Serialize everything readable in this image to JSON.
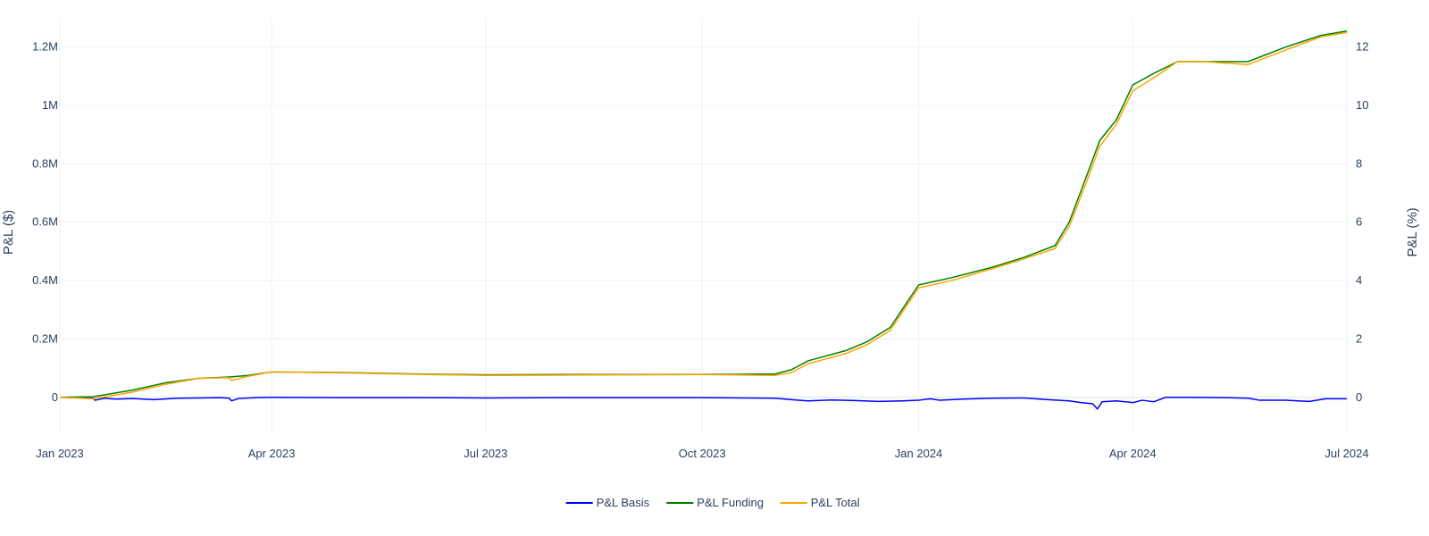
{
  "chart_data": {
    "type": "line",
    "title": "",
    "xlabel": "",
    "ylabel": "P&L ($)",
    "ylabel_right": "P&L (%)",
    "xlim": [
      "2023-01-01",
      "2024-07-01"
    ],
    "ylim": [
      -120000,
      1300000
    ],
    "ylim_right": [
      -1.2,
      13.0
    ],
    "grid": true,
    "legend_position": "bottom-center",
    "x_ticks": [
      {
        "date": "2023-01-01",
        "label": "Jan 2023"
      },
      {
        "date": "2023-04-01",
        "label": "Apr 2023"
      },
      {
        "date": "2023-07-01",
        "label": "Jul 2023"
      },
      {
        "date": "2023-10-01",
        "label": "Oct 2023"
      },
      {
        "date": "2024-01-01",
        "label": "Jan 2024"
      },
      {
        "date": "2024-04-01",
        "label": "Apr 2024"
      },
      {
        "date": "2024-07-01",
        "label": "Jul 2024"
      }
    ],
    "y_ticks": [
      {
        "value": 0,
        "label": "0"
      },
      {
        "value": 200000,
        "label": "0.2M"
      },
      {
        "value": 400000,
        "label": "0.4M"
      },
      {
        "value": 600000,
        "label": "0.6M"
      },
      {
        "value": 800000,
        "label": "0.8M"
      },
      {
        "value": 1000000,
        "label": "1M"
      },
      {
        "value": 1200000,
        "label": "1.2M"
      }
    ],
    "y_ticks_right": [
      {
        "value": 0,
        "label": "0"
      },
      {
        "value": 2,
        "label": "2"
      },
      {
        "value": 4,
        "label": "4"
      },
      {
        "value": 6,
        "label": "6"
      },
      {
        "value": 8,
        "label": "8"
      },
      {
        "value": 10,
        "label": "10"
      },
      {
        "value": 12,
        "label": "12"
      }
    ],
    "series": [
      {
        "name": "P&L Basis",
        "color": "#0000ff",
        "points": [
          [
            "2023-01-01",
            0
          ],
          [
            "2023-01-10",
            -2000
          ],
          [
            "2023-01-15",
            -3000
          ],
          [
            "2023-01-16",
            -10000
          ],
          [
            "2023-01-20",
            -3000
          ],
          [
            "2023-01-25",
            -6000
          ],
          [
            "2023-02-01",
            -4000
          ],
          [
            "2023-02-10",
            -8000
          ],
          [
            "2023-02-20",
            -3000
          ],
          [
            "2023-03-01",
            -2000
          ],
          [
            "2023-03-10",
            -1000
          ],
          [
            "2023-03-14",
            -3000
          ],
          [
            "2023-03-15",
            -12000
          ],
          [
            "2023-03-18",
            -4000
          ],
          [
            "2023-03-25",
            -1000
          ],
          [
            "2023-04-01",
            0
          ],
          [
            "2023-05-01",
            -1000
          ],
          [
            "2023-06-01",
            -1000
          ],
          [
            "2023-07-01",
            -2000
          ],
          [
            "2023-08-01",
            -1000
          ],
          [
            "2023-09-01",
            -1000
          ],
          [
            "2023-10-01",
            -1000
          ],
          [
            "2023-11-01",
            -3000
          ],
          [
            "2023-11-08",
            -8000
          ],
          [
            "2023-11-15",
            -12000
          ],
          [
            "2023-11-25",
            -9000
          ],
          [
            "2023-12-05",
            -11000
          ],
          [
            "2023-12-15",
            -14000
          ],
          [
            "2023-12-25",
            -12000
          ],
          [
            "2024-01-01",
            -10000
          ],
          [
            "2024-01-06",
            -5000
          ],
          [
            "2024-01-10",
            -10000
          ],
          [
            "2024-01-20",
            -6000
          ],
          [
            "2024-02-01",
            -3000
          ],
          [
            "2024-02-15",
            -2000
          ],
          [
            "2024-02-25",
            -8000
          ],
          [
            "2024-03-05",
            -12000
          ],
          [
            "2024-03-10",
            -18000
          ],
          [
            "2024-03-15",
            -22000
          ],
          [
            "2024-03-17",
            -40000
          ],
          [
            "2024-03-19",
            -15000
          ],
          [
            "2024-03-25",
            -12000
          ],
          [
            "2024-04-01",
            -18000
          ],
          [
            "2024-04-05",
            -10000
          ],
          [
            "2024-04-10",
            -15000
          ],
          [
            "2024-04-15",
            0
          ],
          [
            "2024-04-25",
            0
          ],
          [
            "2024-05-10",
            -1000
          ],
          [
            "2024-05-20",
            -3000
          ],
          [
            "2024-05-25",
            -10000
          ],
          [
            "2024-06-05",
            -10000
          ],
          [
            "2024-06-15",
            -14000
          ],
          [
            "2024-06-22",
            -5000
          ],
          [
            "2024-07-01",
            -5000
          ]
        ]
      },
      {
        "name": "P&L Funding",
        "color": "#008000",
        "points": [
          [
            "2023-01-01",
            0
          ],
          [
            "2023-01-15",
            2000
          ],
          [
            "2023-02-01",
            25000
          ],
          [
            "2023-02-15",
            50000
          ],
          [
            "2023-03-01",
            65000
          ],
          [
            "2023-03-15",
            70000
          ],
          [
            "2023-03-22",
            75000
          ],
          [
            "2023-04-01",
            87000
          ],
          [
            "2023-05-01",
            85000
          ],
          [
            "2023-06-01",
            80000
          ],
          [
            "2023-07-01",
            77000
          ],
          [
            "2023-08-01",
            78000
          ],
          [
            "2023-09-01",
            78000
          ],
          [
            "2023-10-01",
            79000
          ],
          [
            "2023-10-15",
            79000
          ],
          [
            "2023-11-01",
            80000
          ],
          [
            "2023-11-08",
            95000
          ],
          [
            "2023-11-15",
            125000
          ],
          [
            "2023-12-01",
            160000
          ],
          [
            "2023-12-10",
            190000
          ],
          [
            "2023-12-20",
            240000
          ],
          [
            "2024-01-01",
            385000
          ],
          [
            "2024-01-15",
            410000
          ],
          [
            "2024-02-01",
            445000
          ],
          [
            "2024-02-15",
            480000
          ],
          [
            "2024-02-28",
            520000
          ],
          [
            "2024-03-05",
            600000
          ],
          [
            "2024-03-12",
            750000
          ],
          [
            "2024-03-18",
            880000
          ],
          [
            "2024-03-25",
            950000
          ],
          [
            "2024-04-01",
            1070000
          ],
          [
            "2024-04-10",
            1110000
          ],
          [
            "2024-04-20",
            1150000
          ],
          [
            "2024-05-01",
            1150000
          ],
          [
            "2024-05-20",
            1150000
          ],
          [
            "2024-06-05",
            1200000
          ],
          [
            "2024-06-20",
            1240000
          ],
          [
            "2024-07-01",
            1255000
          ]
        ]
      },
      {
        "name": "P&L Total",
        "color": "#ffa500",
        "points": [
          [
            "2023-01-01",
            0
          ],
          [
            "2023-01-15",
            -5000
          ],
          [
            "2023-02-01",
            18000
          ],
          [
            "2023-02-15",
            45000
          ],
          [
            "2023-03-01",
            65000
          ],
          [
            "2023-03-14",
            67000
          ],
          [
            "2023-03-15",
            58000
          ],
          [
            "2023-03-22",
            72000
          ],
          [
            "2023-04-01",
            87000
          ],
          [
            "2023-05-01",
            84000
          ],
          [
            "2023-06-01",
            79000
          ],
          [
            "2023-07-01",
            75000
          ],
          [
            "2023-08-01",
            76000
          ],
          [
            "2023-09-01",
            77000
          ],
          [
            "2023-10-01",
            78000
          ],
          [
            "2023-11-01",
            75000
          ],
          [
            "2023-11-08",
            85000
          ],
          [
            "2023-11-15",
            115000
          ],
          [
            "2023-12-01",
            150000
          ],
          [
            "2023-12-10",
            180000
          ],
          [
            "2023-12-20",
            230000
          ],
          [
            "2024-01-01",
            375000
          ],
          [
            "2024-01-15",
            400000
          ],
          [
            "2024-02-01",
            440000
          ],
          [
            "2024-02-15",
            475000
          ],
          [
            "2024-02-28",
            510000
          ],
          [
            "2024-03-05",
            585000
          ],
          [
            "2024-03-12",
            730000
          ],
          [
            "2024-03-18",
            860000
          ],
          [
            "2024-03-25",
            935000
          ],
          [
            "2024-04-01",
            1050000
          ],
          [
            "2024-04-10",
            1095000
          ],
          [
            "2024-04-20",
            1150000
          ],
          [
            "2024-05-01",
            1150000
          ],
          [
            "2024-05-20",
            1140000
          ],
          [
            "2024-06-05",
            1190000
          ],
          [
            "2024-06-20",
            1235000
          ],
          [
            "2024-07-01",
            1250000
          ]
        ]
      }
    ]
  }
}
